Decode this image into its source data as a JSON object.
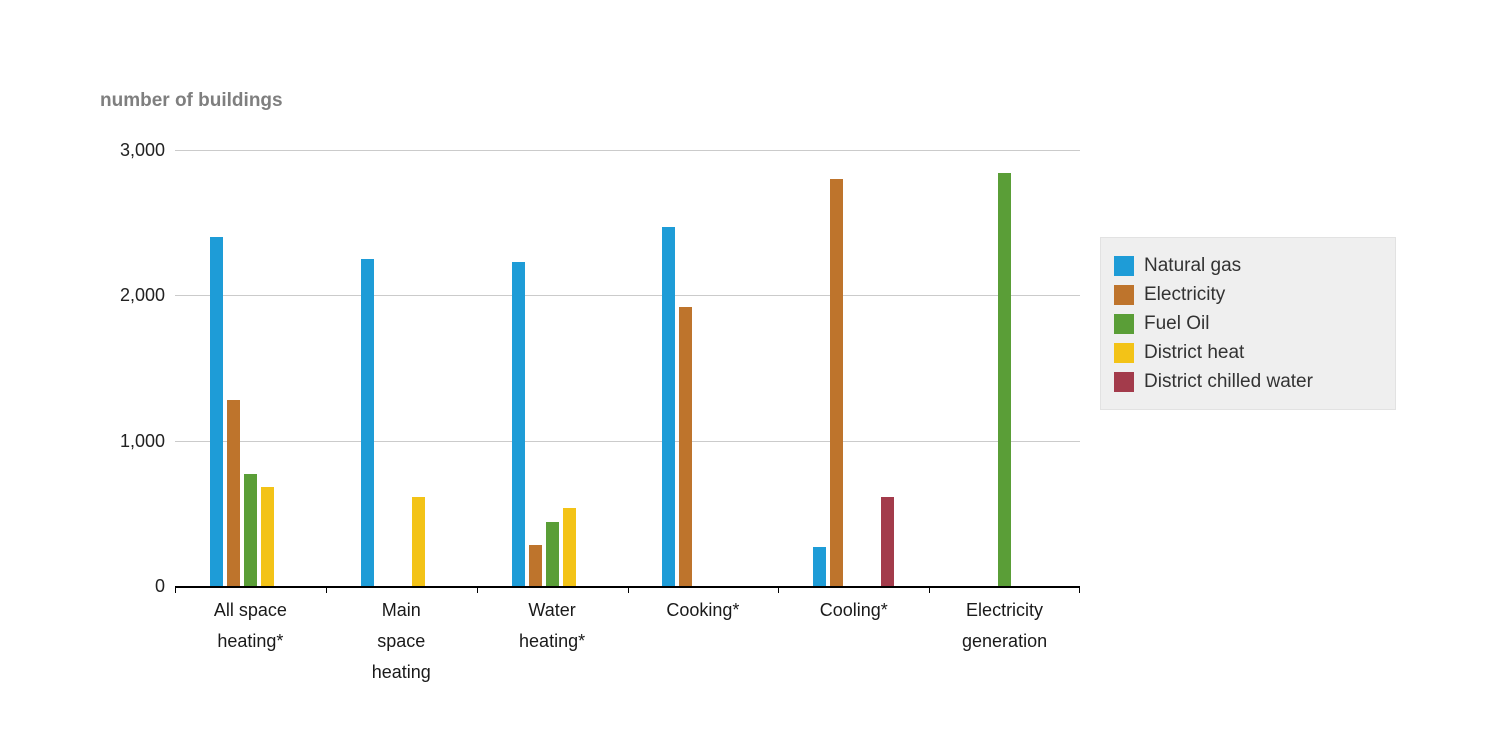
{
  "chart_data": {
    "type": "bar",
    "title": "number of buildings",
    "ylabel": "number of buildings",
    "categories": [
      "All space\nheating*",
      "Main\nspace\nheating",
      "Water\nheating*",
      "Cooking*",
      "Cooling*",
      "Electricity\ngeneration"
    ],
    "series": [
      {
        "name": "Natural gas",
        "color": "#1e9cd7",
        "values": [
          2400,
          2250,
          2230,
          2470,
          270,
          0
        ]
      },
      {
        "name": "Electricity",
        "color": "#be742c",
        "values": [
          1280,
          0,
          280,
          1920,
          2800,
          0
        ]
      },
      {
        "name": "Fuel Oil",
        "color": "#5a9e37",
        "values": [
          770,
          0,
          440,
          0,
          0,
          2840
        ]
      },
      {
        "name": "District heat",
        "color": "#f3c317",
        "values": [
          680,
          610,
          540,
          0,
          0,
          0
        ]
      },
      {
        "name": "District chilled water",
        "color": "#a33b4b",
        "values": [
          0,
          0,
          0,
          0,
          610,
          0
        ]
      }
    ],
    "ylim": [
      0,
      3000
    ],
    "yticks": [
      0,
      1000,
      2000,
      3000
    ],
    "ytick_labels": [
      "0",
      "1,000",
      "2,000",
      "3,000"
    ],
    "grid": true,
    "legend_position": "right",
    "colors": {
      "gridline": "#cbcbcb",
      "axis": "#000000",
      "title_text": "#7f7f7f",
      "label_text": "#1a1a1a",
      "legend_background": "#efefef"
    }
  }
}
